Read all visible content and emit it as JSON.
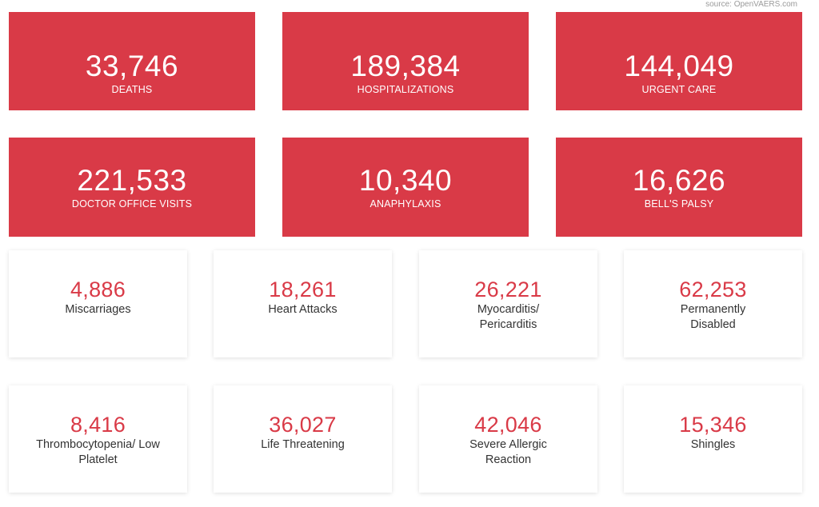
{
  "source": "source: OpenVAERS.com",
  "colors": {
    "accent": "#d93a47",
    "text": "#333333",
    "source_text": "#9a9a9a"
  },
  "red_stats": [
    {
      "value": "33,746",
      "label": "DEATHS"
    },
    {
      "value": "189,384",
      "label": "HOSPITALIZATIONS"
    },
    {
      "value": "144,049",
      "label": "URGENT CARE"
    },
    {
      "value": "221,533",
      "label": "DOCTOR OFFICE VISITS"
    },
    {
      "value": "10,340",
      "label": "ANAPHYLAXIS"
    },
    {
      "value": "16,626",
      "label": "BELL'S PALSY"
    }
  ],
  "white_stats": [
    {
      "value": "4,886",
      "label": "Miscarriages"
    },
    {
      "value": "18,261",
      "label": "Heart Attacks"
    },
    {
      "value": "26,221",
      "label": "Myocarditis/ Pericarditis"
    },
    {
      "value": "62,253",
      "label": "Permanently Disabled"
    },
    {
      "value": "8,416",
      "label": "Thrombocytopenia/ Low Platelet"
    },
    {
      "value": "36,027",
      "label": "Life Threatening"
    },
    {
      "value": "42,046",
      "label": "Severe Allergic Reaction"
    },
    {
      "value": "15,346",
      "label": "Shingles"
    }
  ]
}
